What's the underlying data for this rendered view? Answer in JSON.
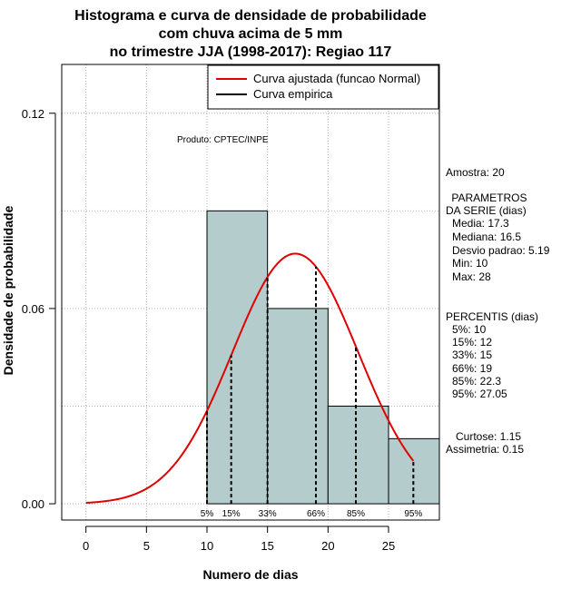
{
  "chart_data": {
    "type": "bar",
    "title_lines": [
      "Histograma e curva de densidade de probabilidade",
      "com chuva acima de 5 mm",
      "no trimestre JJA (1998-2017): Regiao 117"
    ],
    "xlabel": "Numero de dias",
    "ylabel": "Densidade de probabilidade",
    "xlim": [
      -2,
      29.2
    ],
    "ylim": [
      -0.005,
      0.135
    ],
    "xticks": [
      0,
      5,
      10,
      15,
      20,
      25
    ],
    "xtick_labels": [
      "0",
      "5",
      "10",
      "15",
      "20",
      "25"
    ],
    "yticks": [
      0.0,
      0.06,
      0.12
    ],
    "ytick_labels": [
      "0.00",
      "0.06",
      "0.12"
    ],
    "bins": [
      {
        "x0": 10,
        "x1": 15,
        "density": 0.09
      },
      {
        "x0": 15,
        "x1": 20,
        "density": 0.06
      },
      {
        "x0": 20,
        "x1": 25,
        "density": 0.03
      },
      {
        "x0": 25,
        "x1": 29.2,
        "density": 0.02
      }
    ],
    "normal_curve": {
      "mean": 17.3,
      "sd": 5.19,
      "x_from": 0,
      "x_to": 27.05
    },
    "percentiles": [
      {
        "label": "5%",
        "x": 10
      },
      {
        "label": "15%",
        "x": 12
      },
      {
        "label": "33%",
        "x": 15
      },
      {
        "label": "66%",
        "x": 19
      },
      {
        "label": "85%",
        "x": 22.3
      },
      {
        "label": "95%",
        "x": 27.05
      }
    ],
    "legend": {
      "position": "top-right",
      "entries": [
        {
          "label": "Curva ajustada (funcao Normal)",
          "color": "#e00000"
        },
        {
          "label": "Curva empirica",
          "color": "#000000"
        }
      ]
    },
    "annotation": "Produto: CPTEC/INPE",
    "colors": {
      "bar_fill": "#b4cccc",
      "curve": "#e00000",
      "grid": "#b0b0b0",
      "frame": "#000000"
    },
    "grid": true
  },
  "side_panel": {
    "amostra": "Amostra: 20",
    "params_header": [
      " PARAMETROS",
      "DA SERIE (dias)"
    ],
    "params": [
      "Media: 17.3",
      "Mediana: 16.5",
      "Desvio padrao: 5.19",
      "Min: 10",
      "Max: 28"
    ],
    "percentis_header": "PERCENTIS (dias)",
    "percentis": [
      "5%: 10",
      "15%: 12",
      "33%: 15",
      "66%: 19",
      "85%: 22.3",
      "95%: 27.05"
    ],
    "curtose": "Curtose: 1.15",
    "assimetria": "Assimetria: 0.15"
  }
}
